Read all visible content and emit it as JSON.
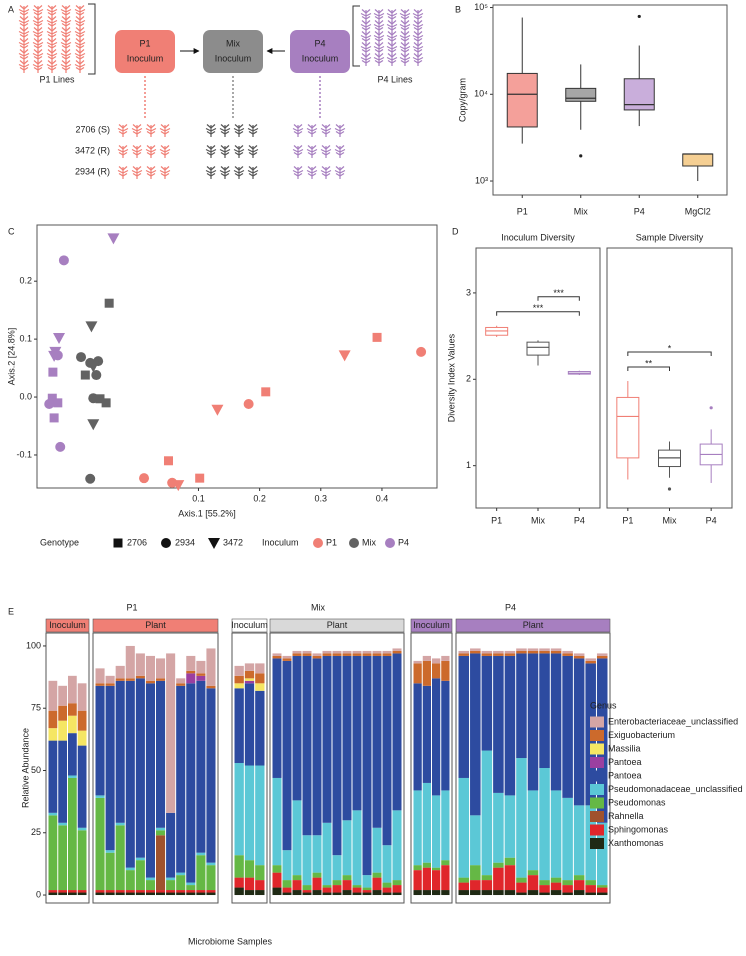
{
  "panel_labels": [
    "A",
    "B",
    "C",
    "D",
    "E"
  ],
  "diagram": {
    "left_caption": "P1 Lines",
    "right_caption": "P4 Lines",
    "nodes": [
      {
        "lines": [
          "P1",
          "Inoculum"
        ],
        "color": "#f07f75"
      },
      {
        "lines": [
          "Mix",
          "Inoculum"
        ],
        "color": "#8c8c8c"
      },
      {
        "lines": [
          "P4",
          "Inoculum"
        ],
        "color": "#a77fc0"
      }
    ],
    "genotypes": [
      "2706 (S)",
      "3472 (R)",
      "2934 (R)"
    ]
  },
  "chart_data": [
    {
      "type": "box",
      "log_scale": true,
      "filled": true,
      "ylabel": "Copy/gram",
      "categories": [
        "P1",
        "Mix",
        "P4",
        "MgCl2"
      ],
      "colors": [
        "#f4a09a",
        "#a6a6a6",
        "#c9aedb",
        "#f5cf93"
      ],
      "boxes": [
        {
          "min": 2700,
          "q1": 4200,
          "median": 10000,
          "q3": 17400,
          "max": 76700
        },
        {
          "min": 3900,
          "q1": 8300,
          "median": 9000,
          "q3": 11700,
          "max": 22100
        },
        {
          "min": 4300,
          "q1": 6600,
          "median": 7600,
          "q3": 15100,
          "max": 36500
        },
        {
          "min": 1000,
          "q1": 1490,
          "median": 2050,
          "q3": 2050,
          "max": 2050
        }
      ],
      "outliers": [
        [],
        [
          1950
        ],
        [
          79000
        ],
        []
      ],
      "ylim": [
        690,
        107000
      ],
      "yticks": [
        {
          "value": 1000,
          "label": "10³"
        },
        {
          "value": 10000,
          "label": "10⁴"
        },
        {
          "value": 100000,
          "label": "10⁵"
        }
      ]
    },
    {
      "type": "scatter",
      "xlabel": "Axis.1   [55.2%]",
      "ylabel": "Axis.2   [24.8%]",
      "xlim": [
        -0.164,
        0.49
      ],
      "ylim": [
        -0.157,
        0.297
      ],
      "xticks": [
        0.1,
        0.2,
        0.3,
        0.4
      ],
      "yticks": [
        -0.1,
        {
          "value": 0,
          "label": "0.0"
        },
        0.1,
        0.2
      ],
      "shape_title": "Genotype",
      "color_title": "Inoculum",
      "genotypes": [
        {
          "name": "2706",
          "shape": "square"
        },
        {
          "name": "2934",
          "shape": "circle"
        },
        {
          "name": "3472",
          "shape": "triangle"
        }
      ],
      "series": [
        {
          "name": "P1",
          "color": "#f07f75",
          "x": [
            0.464,
            0.392,
            0.339,
            0.21,
            0.182,
            0.131,
            0.102,
            0.051,
            0.011,
            0.057,
            0.067
          ],
          "y": [
            0.078,
            0.103,
            0.072,
            0.009,
            -0.012,
            -0.022,
            -0.14,
            -0.11,
            -0.14,
            -0.148,
            -0.152
          ],
          "genotype": [
            "2934",
            "2706",
            "3472",
            "2706",
            "2934",
            "3472",
            "2706",
            "2706",
            "2934",
            "2934",
            "3472"
          ]
        },
        {
          "name": "Mix",
          "color": "#626262",
          "x": [
            -0.046,
            -0.075,
            -0.092,
            -0.077,
            -0.064,
            -0.072,
            -0.085,
            -0.067,
            -0.072,
            -0.061,
            -0.051,
            -0.072,
            -0.077
          ],
          "y": [
            0.162,
            0.122,
            0.069,
            0.059,
            0.062,
            0.053,
            0.038,
            0.038,
            -0.002,
            -0.003,
            -0.01,
            -0.047,
            -0.141
          ],
          "genotype": [
            "2706",
            "3472",
            "2934",
            "2934",
            "2934",
            "3472",
            "2706",
            "2934",
            "2934",
            "2706",
            "2706",
            "3472",
            "2934"
          ]
        },
        {
          "name": "P4",
          "color": "#a77fc0",
          "x": [
            -0.039,
            -0.12,
            -0.128,
            -0.134,
            -0.13,
            -0.136,
            -0.138,
            -0.139,
            -0.13,
            -0.144,
            -0.136,
            -0.126
          ],
          "y": [
            0.274,
            0.236,
            0.102,
            0.078,
            0.072,
            0.071,
            0.043,
            -0.002,
            -0.01,
            -0.012,
            -0.036,
            -0.086
          ],
          "genotype": [
            "3472",
            "2934",
            "3472",
            "3472",
            "2934",
            "3472",
            "2706",
            "2706",
            "2706",
            "2934",
            "2706",
            "2934"
          ]
        }
      ]
    },
    {
      "type": "box",
      "filled": false,
      "ylabel": "Diversity Index Values",
      "categories": [
        "P1",
        "Mix",
        "P4"
      ],
      "colors": [
        "#f07f75",
        "#555555",
        "#a77fc0"
      ],
      "ylim": [
        0.51,
        3.52
      ],
      "yticks": [
        1,
        2,
        3
      ],
      "facets": [
        {
          "title": "Inoculum Diversity",
          "boxes": [
            {
              "min": 2.49,
              "q1": 2.51,
              "median": 2.56,
              "q3": 2.6,
              "max": 2.62
            },
            {
              "min": 2.16,
              "q1": 2.28,
              "median": 2.37,
              "q3": 2.43,
              "max": 2.45
            },
            {
              "min": 2.05,
              "q1": 2.06,
              "median": 2.07,
              "q3": 2.09,
              "max": 2.1
            }
          ],
          "outliers": [
            [],
            [],
            []
          ],
          "annotations": [
            {
              "pair": [
                "Mix",
                "P4"
              ],
              "label": "***"
            },
            {
              "pair": [
                "P1",
                "P4"
              ],
              "label": "***"
            }
          ]
        },
        {
          "title": "Sample Diversity",
          "boxes": [
            {
              "min": 0.84,
              "q1": 1.09,
              "median": 1.57,
              "q3": 1.79,
              "max": 1.98
            },
            {
              "min": 0.86,
              "q1": 0.99,
              "median": 1.09,
              "q3": 1.18,
              "max": 1.28
            },
            {
              "min": 0.8,
              "q1": 1.01,
              "median": 1.13,
              "q3": 1.25,
              "max": 1.42
            }
          ],
          "outliers": [
            [],
            [
              0.73
            ],
            [
              1.67
            ]
          ],
          "annotations": [
            {
              "pair": [
                "P1",
                "P4"
              ],
              "label": "*"
            },
            {
              "pair": [
                "P1",
                "Mix"
              ],
              "label": "**"
            }
          ]
        }
      ]
    },
    {
      "type": "stacked_bar",
      "ylabel": "Relative Abundance",
      "xlabel": "Microbiome Samples",
      "legend_title": "Genus",
      "ylim": [
        -3.2,
        105.2
      ],
      "yticks": [
        0,
        25,
        50,
        75,
        100
      ],
      "groups": [
        {
          "title": "P1",
          "strips": [
            {
              "label": "Inoculum",
              "color": "#f07f75",
              "categories": [
                null,
                null,
                null,
                null
              ]
            },
            {
              "label": "Plant",
              "color": "#f07f75",
              "categories": [
                null,
                null,
                null,
                null,
                null,
                null,
                null,
                null,
                null,
                null,
                null,
                null
              ]
            }
          ]
        },
        {
          "title": "Mix",
          "strips": [
            {
              "label": "Inoculum",
              "color": "#ffffff",
              "categories": [
                null,
                null,
                null
              ]
            },
            {
              "label": "Plant",
              "color": "#d9d9d9",
              "categories": [
                null,
                null,
                null,
                null,
                null,
                null,
                null,
                null,
                null,
                null,
                null,
                null,
                null
              ]
            }
          ]
        },
        {
          "title": "P4",
          "strips": [
            {
              "label": "Inoculum",
              "color": "#a77fc0",
              "categories": [
                null,
                null,
                null,
                null
              ]
            },
            {
              "label": "Plant",
              "color": "#a77fc0",
              "categories": [
                null,
                null,
                null,
                null,
                null,
                null,
                null,
                null,
                null,
                null,
                null,
                null,
                null
              ]
            }
          ]
        }
      ],
      "series": [
        {
          "name": "Enterobacteriaceae_unclassified",
          "color": "#d4a5a5",
          "values": [
            12,
            8,
            11,
            11,
            6,
            3,
            5,
            13,
            9,
            10,
            8,
            64,
            2,
            6,
            5,
            15,
            4,
            3,
            4,
            1,
            1,
            1,
            1,
            1,
            1,
            1,
            1,
            1,
            1,
            1,
            1,
            1,
            1,
            2,
            2,
            2,
            1,
            1,
            1,
            1,
            1,
            1,
            1,
            1,
            1,
            1,
            1,
            1,
            1
          ]
        },
        {
          "name": "Exiguobacterium",
          "color": "#cc6a2c",
          "values": [
            7,
            6,
            5,
            8,
            1,
            1,
            1,
            1,
            1,
            1,
            1,
            0,
            1,
            1,
            1,
            1,
            3,
            3,
            4,
            1,
            1,
            1,
            1,
            1,
            1,
            1,
            1,
            1,
            1,
            1,
            1,
            1,
            8,
            10,
            6,
            8,
            1,
            1,
            1,
            1,
            1,
            1,
            1,
            1,
            1,
            1,
            1,
            1,
            1
          ]
        },
        {
          "name": "Massilia",
          "color": "#f5e663",
          "values": [
            5,
            8,
            7,
            6,
            0,
            0,
            0,
            0,
            0,
            0,
            0,
            0,
            0,
            0,
            0,
            0,
            2,
            1,
            3,
            0,
            0,
            0,
            0,
            0,
            0,
            0,
            0,
            0,
            0,
            0,
            0,
            0,
            0,
            0,
            0,
            0,
            0,
            0,
            0,
            0,
            0,
            0,
            0,
            0,
            0,
            0,
            0,
            0,
            0
          ]
        },
        {
          "name": "Pantoea",
          "color": "#9b3fa0",
          "values": [
            0,
            0,
            0,
            0,
            0,
            0,
            0,
            0,
            0,
            0,
            0,
            0,
            0,
            4,
            2,
            0,
            0,
            1,
            0,
            0,
            0,
            0,
            0,
            0,
            0,
            0,
            0,
            0,
            0,
            0,
            0,
            0,
            0,
            0,
            0,
            0,
            0,
            0,
            0,
            0,
            0,
            0,
            0,
            0,
            0,
            0,
            0,
            0,
            0
          ]
        },
        {
          "name": "Pantoea",
          "color": "#2d4ba0",
          "values": [
            29,
            33,
            17,
            33,
            44,
            66,
            57,
            75,
            72,
            78,
            59,
            26,
            75,
            80,
            69,
            70,
            30,
            33,
            30,
            48,
            76,
            58,
            72,
            71,
            67,
            80,
            66,
            62,
            88,
            69,
            76,
            63,
            43,
            39,
            47,
            44,
            49,
            65,
            38,
            55,
            56,
            42,
            55,
            46,
            55,
            57,
            59,
            57,
            66
          ]
        },
        {
          "name": "Pseudomonadaceae_unclassified",
          "color": "#5bc8d6",
          "values": [
            1,
            1,
            1,
            1,
            1,
            1,
            1,
            1,
            1,
            1,
            1,
            1,
            1,
            1,
            1,
            1,
            37,
            38,
            40,
            35,
            12,
            30,
            20,
            15,
            25,
            10,
            22,
            30,
            5,
            18,
            15,
            28,
            30,
            32,
            29,
            28,
            40,
            20,
            50,
            28,
            25,
            48,
            32,
            45,
            35,
            33,
            28,
            30,
            25
          ]
        },
        {
          "name": "Pseudomonas",
          "color": "#65b845",
          "values": [
            30,
            26,
            45,
            24,
            37,
            15,
            26,
            8,
            12,
            4,
            2,
            4,
            6,
            2,
            14,
            10,
            9,
            7,
            6,
            3,
            3,
            2,
            2,
            2,
            1,
            2,
            2,
            1,
            1,
            2,
            2,
            2,
            2,
            2,
            1,
            2,
            2,
            6,
            2,
            2,
            3,
            2,
            2,
            2,
            2,
            2,
            2,
            2,
            1
          ]
        },
        {
          "name": "Rahnella",
          "color": "#a0522d",
          "values": [
            0,
            0,
            0,
            0,
            0,
            0,
            0,
            0,
            0,
            0,
            22,
            0,
            0,
            0,
            0,
            0,
            0,
            0,
            0,
            0,
            0,
            0,
            0,
            0,
            0,
            0,
            0,
            0,
            0,
            0,
            0,
            0,
            0,
            0,
            0,
            0,
            0,
            0,
            0,
            0,
            0,
            0,
            0,
            0,
            0,
            0,
            0,
            0,
            0
          ]
        },
        {
          "name": "Sphingomonas",
          "color": "#e0262b",
          "values": [
            1,
            1,
            1,
            1,
            1,
            1,
            1,
            1,
            1,
            1,
            1,
            1,
            1,
            1,
            1,
            1,
            4,
            5,
            4,
            6,
            2,
            4,
            1,
            5,
            2,
            3,
            4,
            2,
            1,
            5,
            2,
            3,
            8,
            9,
            8,
            10,
            3,
            4,
            4,
            9,
            10,
            4,
            6,
            3,
            3,
            3,
            4,
            3,
            2
          ]
        },
        {
          "name": "Xanthomonas",
          "color": "#1f2a14",
          "values": [
            1,
            1,
            1,
            1,
            1,
            1,
            1,
            1,
            1,
            1,
            1,
            1,
            1,
            1,
            1,
            1,
            3,
            2,
            2,
            3,
            1,
            2,
            1,
            2,
            1,
            1,
            2,
            1,
            1,
            2,
            1,
            1,
            2,
            2,
            2,
            2,
            2,
            2,
            2,
            2,
            2,
            1,
            2,
            1,
            2,
            1,
            2,
            1,
            1
          ]
        }
      ]
    }
  ]
}
